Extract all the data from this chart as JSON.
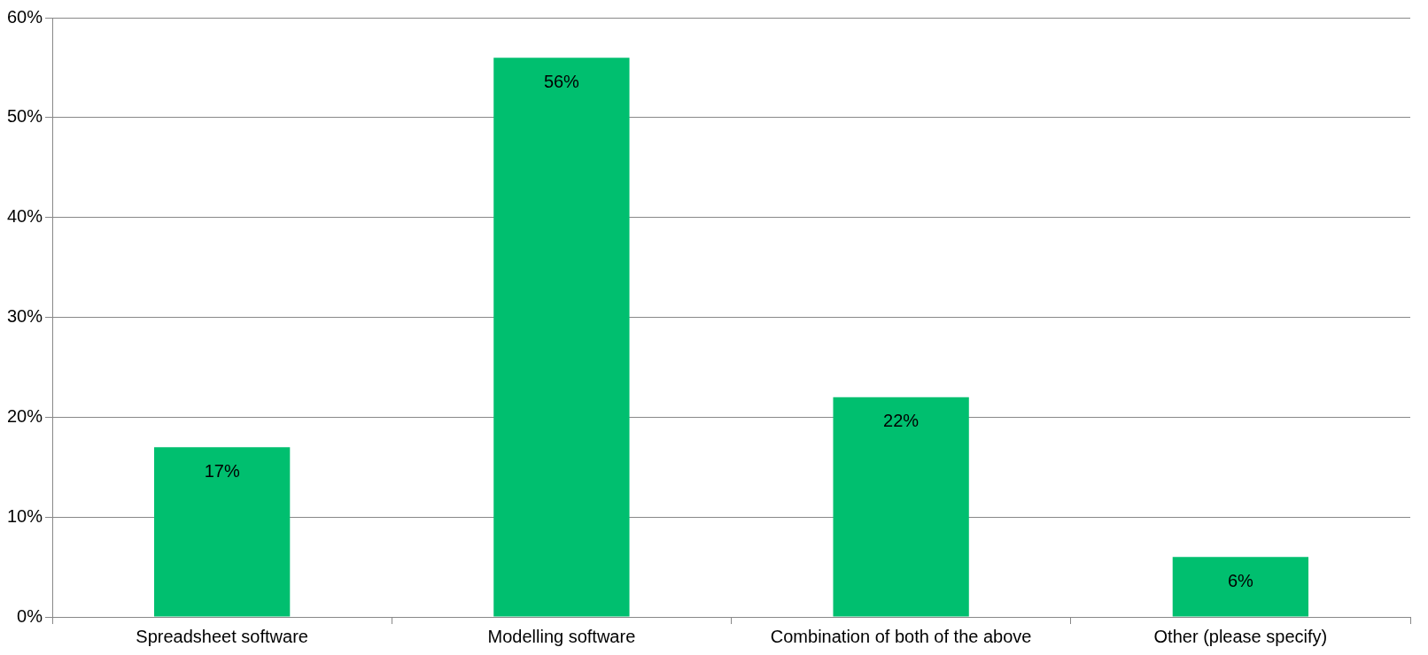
{
  "chart_data": {
    "type": "bar",
    "categories": [
      "Spreadsheet software",
      "Modelling software",
      "Combination of both of the above",
      "Other (please specify)"
    ],
    "values": [
      17,
      56,
      22,
      6
    ],
    "value_labels": [
      "17%",
      "56%",
      "22%",
      "6%"
    ],
    "color": "#00bf6f",
    "grid": "y",
    "legend": false,
    "ylim": [
      0,
      60
    ],
    "yticks": [
      {
        "value": 0,
        "label": "0%"
      },
      {
        "value": 10,
        "label": "10%"
      },
      {
        "value": 20,
        "label": "20%"
      },
      {
        "value": 30,
        "label": "30%"
      },
      {
        "value": 40,
        "label": "40%"
      },
      {
        "value": 50,
        "label": "50%"
      },
      {
        "value": 60,
        "label": "60%"
      }
    ]
  }
}
